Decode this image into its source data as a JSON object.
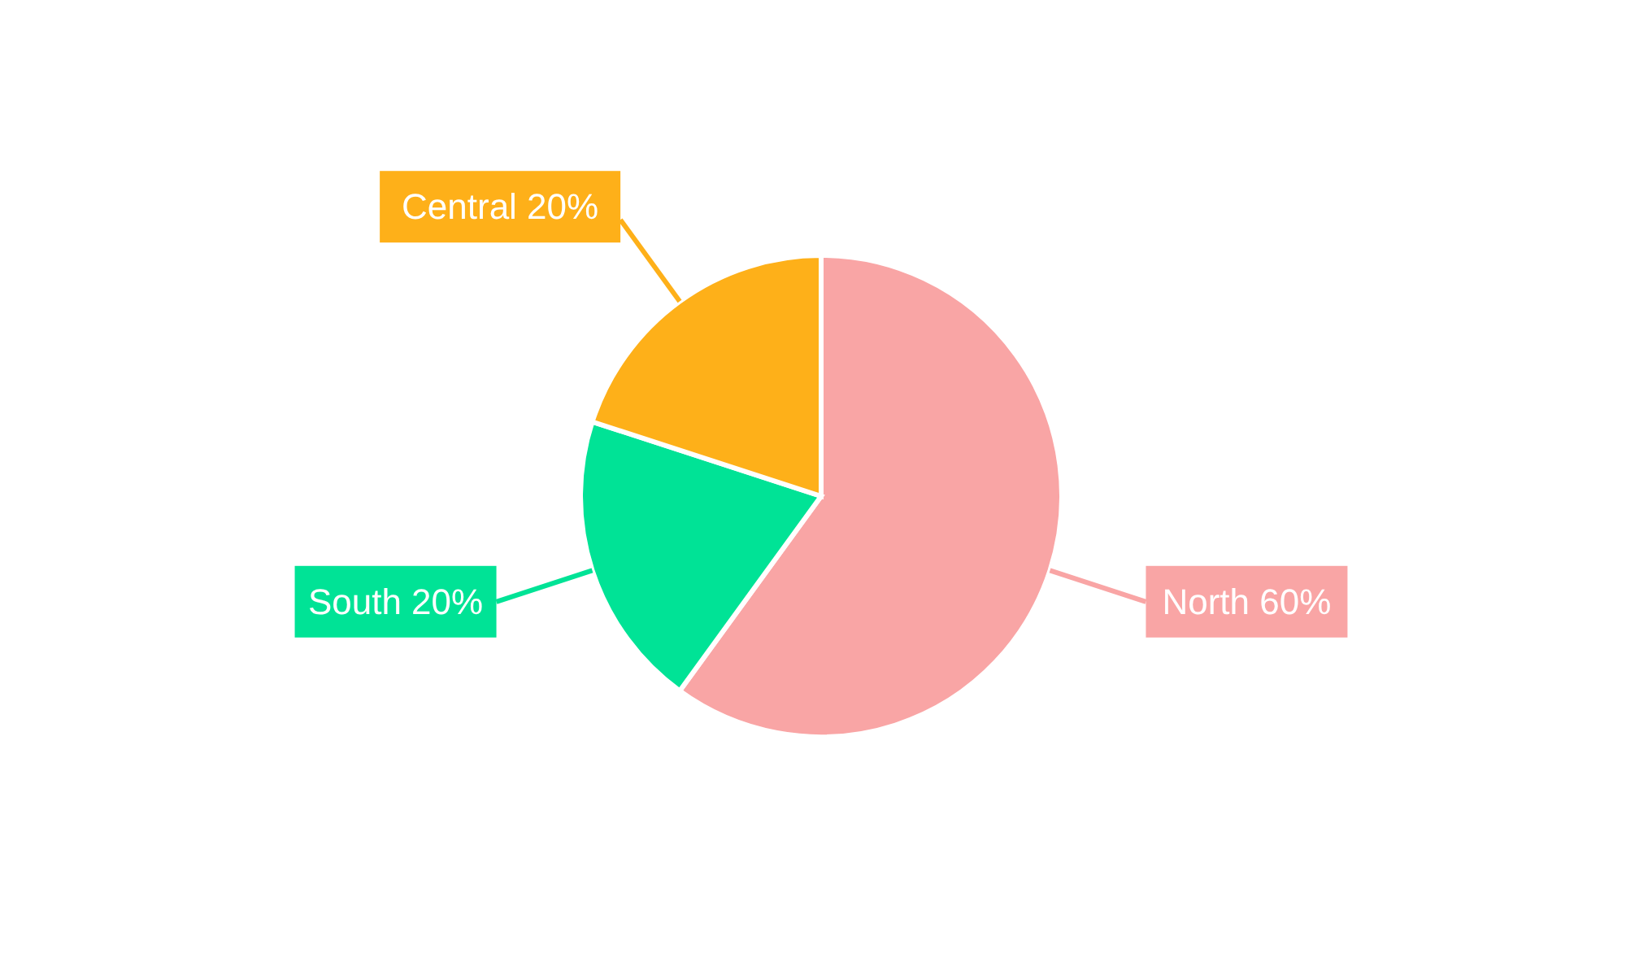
{
  "chart_data": {
    "type": "pie",
    "categories": [
      "North",
      "South",
      "Central"
    ],
    "values": [
      60,
      20,
      20
    ],
    "value_labels": [
      "60%",
      "20%",
      "20%"
    ],
    "colors": [
      "#f9a5a5",
      "#00e396",
      "#feb019"
    ],
    "legend": false
  }
}
